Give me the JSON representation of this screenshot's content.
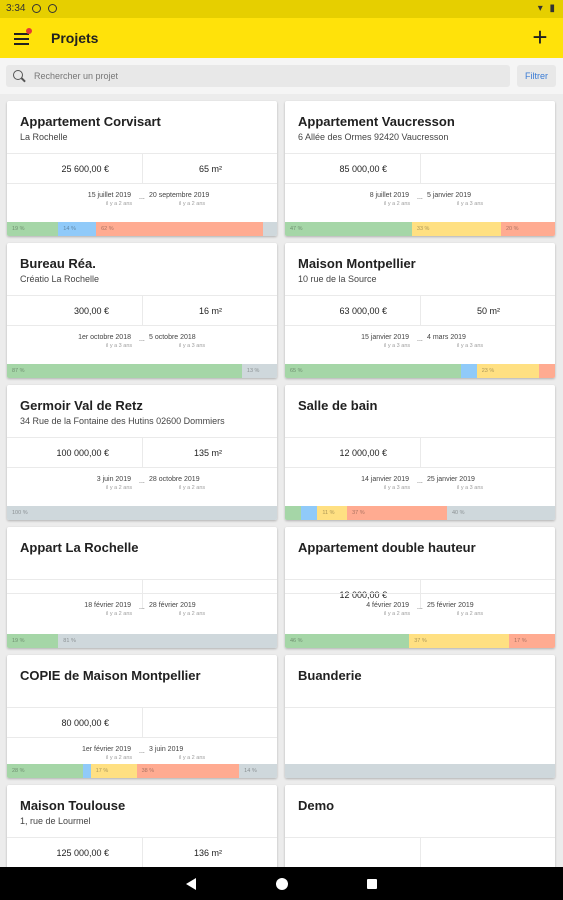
{
  "status_bar": {
    "time": "3:34"
  },
  "app_bar": {
    "title": "Projets",
    "menu_icon": "menu-icon",
    "add_icon": "plus-icon",
    "add_glyph": "+"
  },
  "search": {
    "placeholder": "Rechercher un projet",
    "filter_label": "Filtrer"
  },
  "colors": {
    "accent_yellow": "#ffe20a",
    "status_green": "#a5d6a7",
    "status_blue": "#90caf9",
    "status_yellow": "#ffe082",
    "status_salmon": "#ffab91",
    "status_grey": "#cfd8dc"
  },
  "projects": [
    {
      "name": "Appartement Corvisart",
      "address": "La Rochelle",
      "budget": "25 600,00 €",
      "surface": "65 m²",
      "start_date": "15 juillet 2019",
      "start_ago": "il y a 2 ans",
      "end_date": "20 septembre 2019",
      "end_ago": "il y a 2 ans",
      "dots": "...",
      "progress": [
        {
          "color": "#a5d6a7",
          "fraction": 0.19,
          "label": "19 %"
        },
        {
          "color": "#90caf9",
          "fraction": 0.14,
          "label": "14 %"
        },
        {
          "color": "#ffab91",
          "fraction": 0.62,
          "label": "62 %"
        },
        {
          "color": "#cfd8dc",
          "fraction": 0.05,
          "label": ""
        }
      ]
    },
    {
      "name": "Appartement Vaucresson",
      "address": "6 Allée des Ormes 92420 Vaucresson",
      "budget": "85 000,00 €",
      "surface": "",
      "start_date": "8 juillet 2019",
      "start_ago": "il y a 2 ans",
      "end_date": "5 janvier 2019",
      "end_ago": "il y a 3 ans",
      "dots": "...",
      "progress": [
        {
          "color": "#a5d6a7",
          "fraction": 0.47,
          "label": "47 %"
        },
        {
          "color": "#ffe082",
          "fraction": 0.33,
          "label": "33 %"
        },
        {
          "color": "#ffab91",
          "fraction": 0.2,
          "label": "20 %"
        }
      ]
    },
    {
      "name": "Bureau Réa.",
      "address": "Créatio La Rochelle",
      "budget": "300,00 €",
      "surface": "16 m²",
      "start_date": "1er octobre 2018",
      "start_ago": "il y a 3 ans",
      "end_date": "5 octobre 2018",
      "end_ago": "il y a 3 ans",
      "dots": "...",
      "progress": [
        {
          "color": "#a5d6a7",
          "fraction": 0.87,
          "label": "87 %"
        },
        {
          "color": "#cfd8dc",
          "fraction": 0.13,
          "label": "13 %"
        }
      ]
    },
    {
      "name": "Maison Montpellier",
      "address": "10 rue de la Source",
      "budget": "63 000,00 €",
      "surface": "50 m²",
      "start_date": "15 janvier 2019",
      "start_ago": "il y a 3 ans",
      "end_date": "4 mars 2019",
      "end_ago": "il y a 3 ans",
      "dots": "...",
      "progress": [
        {
          "color": "#a5d6a7",
          "fraction": 0.65,
          "label": "65 %"
        },
        {
          "color": "#90caf9",
          "fraction": 0.06,
          "label": ""
        },
        {
          "color": "#ffe082",
          "fraction": 0.23,
          "label": "23 %"
        },
        {
          "color": "#ffab91",
          "fraction": 0.06,
          "label": ""
        }
      ]
    },
    {
      "name": "Germoir Val de Retz",
      "address": "34 Rue de la Fontaine des Hutins 02600 Dommiers",
      "budget": "100 000,00 €",
      "surface": "135 m²",
      "start_date": "3 juin 2019",
      "start_ago": "il y a 2 ans",
      "end_date": "28 octobre 2019",
      "end_ago": "il y a 2 ans",
      "dots": "...",
      "progress": [
        {
          "color": "#cfd8dc",
          "fraction": 1.0,
          "label": "100 %"
        }
      ]
    },
    {
      "name": "Salle de bain",
      "address": "",
      "budget": "12 000,00 €",
      "surface": "",
      "start_date": "14 janvier 2019",
      "start_ago": "il y a 3 ans",
      "end_date": "25 janvier 2019",
      "end_ago": "il y a 3 ans",
      "dots": "...",
      "progress": [
        {
          "color": "#a5d6a7",
          "fraction": 0.06,
          "label": ""
        },
        {
          "color": "#90caf9",
          "fraction": 0.06,
          "label": ""
        },
        {
          "color": "#ffe082",
          "fraction": 0.11,
          "label": "11 %"
        },
        {
          "color": "#ffab91",
          "fraction": 0.37,
          "label": "37 %"
        },
        {
          "color": "#cfd8dc",
          "fraction": 0.4,
          "label": "40 %"
        }
      ]
    },
    {
      "name": "Appart La Rochelle",
      "address": "",
      "budget": "",
      "surface": "",
      "start_date": "18 février 2019",
      "start_ago": "il y a 2 ans",
      "end_date": "28 février 2019",
      "end_ago": "il y a 2 ans",
      "dots": "...",
      "progress": [
        {
          "color": "#a5d6a7",
          "fraction": 0.19,
          "label": "19 %"
        },
        {
          "color": "#cfd8dc",
          "fraction": 0.81,
          "label": "81 %"
        }
      ]
    },
    {
      "name": "Appartement double hauteur",
      "address": "",
      "budget": "12 000,00 €",
      "surface": "",
      "start_date": "4 février 2019",
      "start_ago": "il y a 2 ans",
      "end_date": "25 février 2019",
      "end_ago": "il y a 2 ans",
      "dots": "...",
      "progress": [
        {
          "color": "#a5d6a7",
          "fraction": 0.46,
          "label": "46 %"
        },
        {
          "color": "#ffe082",
          "fraction": 0.37,
          "label": "37 %"
        },
        {
          "color": "#ffab91",
          "fraction": 0.17,
          "label": "17 %"
        }
      ]
    },
    {
      "name": "COPIE de Maison Montpellier",
      "address": "",
      "budget": "80 000,00 €",
      "surface": "",
      "start_date": "1er février 2019",
      "start_ago": "il y a 2 ans",
      "end_date": "3 juin 2019",
      "end_ago": "il y a 2 ans",
      "dots": "...",
      "progress": [
        {
          "color": "#a5d6a7",
          "fraction": 0.28,
          "label": "28 %"
        },
        {
          "color": "#90caf9",
          "fraction": 0.03,
          "label": ""
        },
        {
          "color": "#ffe082",
          "fraction": 0.17,
          "label": "17 %"
        },
        {
          "color": "#ffab91",
          "fraction": 0.38,
          "label": "38 %"
        },
        {
          "color": "#cfd8dc",
          "fraction": 0.14,
          "label": "14 %"
        }
      ]
    },
    {
      "name": "Buanderie",
      "address": "",
      "budget": "",
      "surface": "",
      "start_date": "",
      "start_ago": "",
      "end_date": "",
      "end_ago": "",
      "dots": "",
      "progress": [
        {
          "color": "#cfd8dc",
          "fraction": 1.0,
          "label": ""
        }
      ]
    },
    {
      "name": "Maison Toulouse",
      "address": "1, rue de Lourmel",
      "budget": "125 000,00 €",
      "surface": "136 m²",
      "start_date": "",
      "start_ago": "",
      "end_date": "",
      "end_ago": "",
      "dots": "",
      "progress": []
    },
    {
      "name": "Demo",
      "address": "",
      "budget": "",
      "surface": "",
      "start_date": "",
      "start_ago": "",
      "end_date": "",
      "end_ago": "",
      "dots": "",
      "progress": []
    }
  ]
}
